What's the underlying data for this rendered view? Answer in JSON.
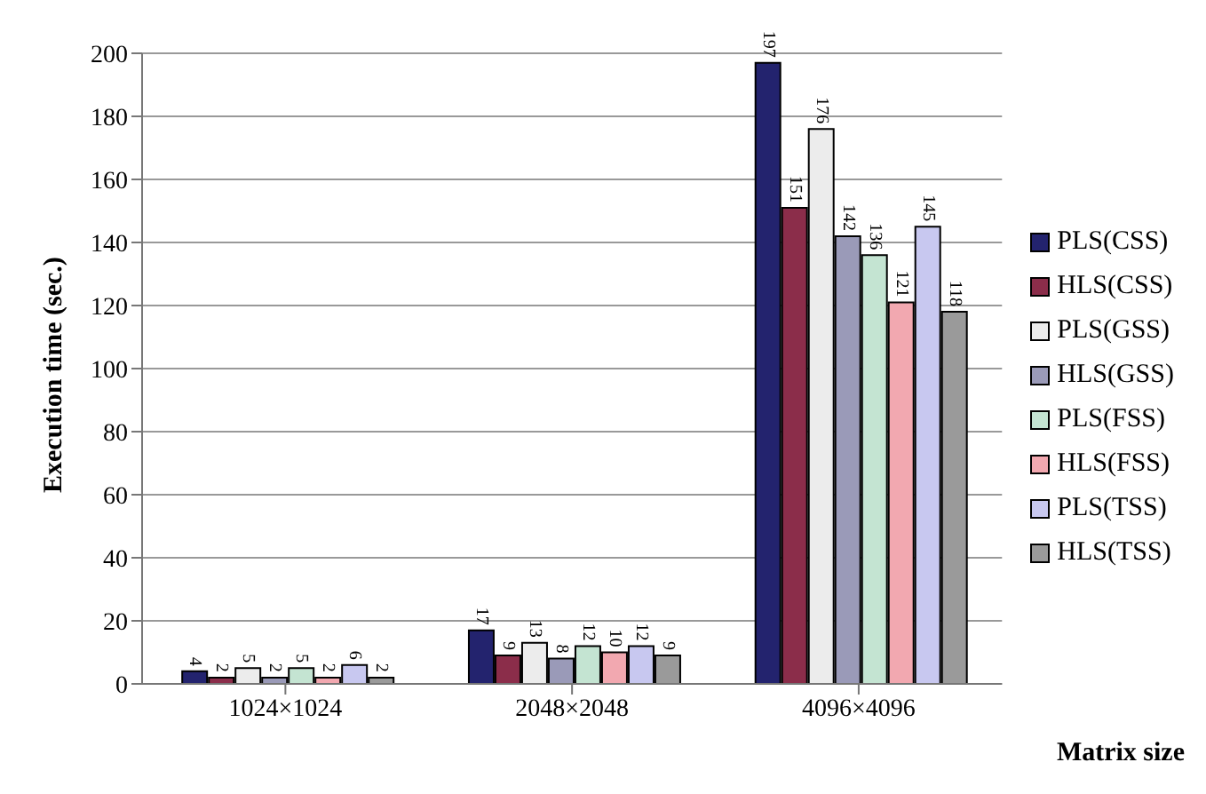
{
  "chart_data": {
    "type": "bar",
    "ylabel": "Execution time (sec.)",
    "xlabel": "Matrix size",
    "categories": [
      "1024×1024",
      "2048×2048",
      "4096×4096"
    ],
    "series": [
      {
        "name": "PLS(CSS)",
        "color": "#23236e",
        "values": [
          4,
          17,
          197
        ]
      },
      {
        "name": "HLS(CSS)",
        "color": "#8b2d4a",
        "values": [
          2,
          9,
          151
        ]
      },
      {
        "name": "PLS(GSS)",
        "color": "#ececec",
        "values": [
          5,
          13,
          176
        ]
      },
      {
        "name": "HLS(GSS)",
        "color": "#9a9ab8",
        "values": [
          2,
          8,
          142
        ]
      },
      {
        "name": "PLS(FSS)",
        "color": "#c4e4d2",
        "values": [
          5,
          12,
          136
        ]
      },
      {
        "name": "HLS(FSS)",
        "color": "#f2a8b0",
        "values": [
          2,
          10,
          121
        ]
      },
      {
        "name": "PLS(TSS)",
        "color": "#c8c8f0",
        "values": [
          6,
          12,
          145
        ]
      },
      {
        "name": "HLS(TSS)",
        "color": "#9a9a9a",
        "values": [
          2,
          9,
          118
        ]
      }
    ],
    "ylim": [
      0,
      200
    ],
    "yticks": [
      0,
      20,
      40,
      60,
      80,
      100,
      120,
      140,
      160,
      180,
      200
    ],
    "grid": "y",
    "legend": "right",
    "data_labels": true
  }
}
